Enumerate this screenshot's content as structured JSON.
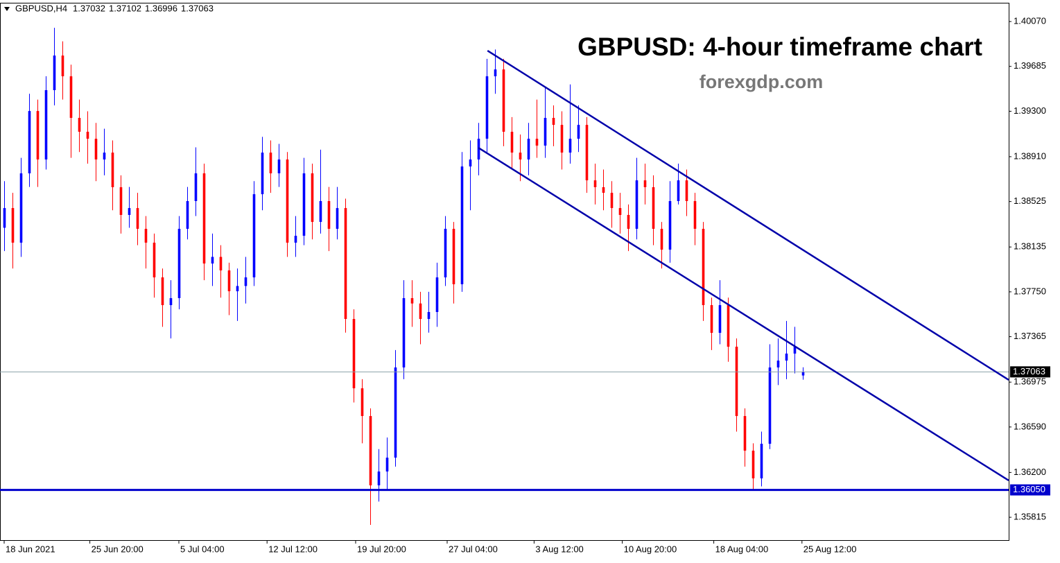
{
  "chart_data": {
    "type": "candlestick",
    "symbol": "GBPUSD,H4",
    "title": "GBPUSD: 4-hour timeframe chart",
    "subtitle": "forexgdp.com",
    "up_color": "#0000ff",
    "down_color": "#ff0000",
    "open": [
      1.383,
      1.38469,
      1.38172,
      1.38767,
      1.39302,
      1.38886,
      1.39481,
      1.39778,
      1.396,
      1.39243,
      1.39124,
      1.39064,
      1.38886,
      1.38945,
      1.38648,
      1.3841,
      1.38469,
      1.38291,
      1.38172,
      1.37874,
      1.37636,
      1.37696,
      1.38291,
      1.38529,
      1.38767,
      1.37993,
      1.3805,
      1.37934,
      1.37755,
      1.378,
      1.37874,
      1.38588,
      1.38945,
      1.38767,
      1.38886,
      1.38172,
      1.38231,
      1.38767,
      1.3835,
      1.38529,
      1.38291,
      1.38469,
      1.37517,
      1.36922,
      1.36684,
      1.36089,
      1.36208,
      1.36327,
      1.37101,
      1.37696,
      1.3765,
      1.37517,
      1.37577,
      1.37874,
      1.38291,
      1.37815,
      1.38826,
      1.38886,
      1.39064,
      1.396,
      1.39659,
      1.39124,
      1.38945,
      1.38886,
      1.39064,
      1.39005,
      1.39243,
      1.39183,
      1.38945,
      1.39064,
      1.39183,
      1.38707,
      1.38648,
      1.386,
      1.38469,
      1.3841,
      1.38291,
      1.38707,
      1.38648,
      1.38291,
      1.38112,
      1.38529,
      1.38707,
      1.38529,
      1.38291,
      1.37636,
      1.37398,
      1.37636,
      1.37279,
      1.36684,
      1.36387,
      1.36149,
      1.36446,
      1.37101,
      1.3716,
      1.3722,
      1.37032
    ],
    "high": [
      1.387,
      1.386,
      1.389,
      1.3945,
      1.394,
      1.396,
      1.40016,
      1.399,
      1.397,
      1.394,
      1.393,
      1.392,
      1.3915,
      1.3905,
      1.3875,
      1.3865,
      1.386,
      1.384,
      1.3825,
      1.3795,
      1.3785,
      1.384,
      1.3865,
      1.3899,
      1.3885,
      1.3825,
      1.3815,
      1.38,
      1.3795,
      1.3805,
      1.387,
      1.3908,
      1.3905,
      1.3902,
      1.3895,
      1.384,
      1.389,
      1.3885,
      1.3897,
      1.3865,
      1.3865,
      1.3855,
      1.376,
      1.37,
      1.3675,
      1.364,
      1.365,
      1.3725,
      1.3785,
      1.3785,
      1.3775,
      1.3775,
      1.38,
      1.384,
      1.3835,
      1.3895,
      1.3905,
      1.392,
      1.3975,
      1.3983,
      1.3975,
      1.3925,
      1.391,
      1.392,
      1.394,
      1.395,
      1.3935,
      1.393,
      1.3953,
      1.3935,
      1.3925,
      1.3885,
      1.388,
      1.387,
      1.386,
      1.385,
      1.389,
      1.3885,
      1.3875,
      1.3835,
      1.387,
      1.3885,
      1.388,
      1.386,
      1.3835,
      1.377,
      1.3785,
      1.377,
      1.3735,
      1.3675,
      1.3645,
      1.3655,
      1.373,
      1.3735,
      1.375,
      1.3745,
      1.37102
    ],
    "low": [
      1.381,
      1.3795,
      1.3805,
      1.3865,
      1.3865,
      1.388,
      1.3935,
      1.394,
      1.389,
      1.3895,
      1.3885,
      1.387,
      1.3875,
      1.3845,
      1.3825,
      1.383,
      1.3815,
      1.3795,
      1.377,
      1.3745,
      1.3735,
      1.376,
      1.382,
      1.384,
      1.3785,
      1.378,
      1.377,
      1.3755,
      1.375,
      1.3765,
      1.378,
      1.3845,
      1.386,
      1.3865,
      1.3805,
      1.3805,
      1.3815,
      1.382,
      1.3825,
      1.381,
      1.382,
      1.374,
      1.368,
      1.3645,
      1.3575,
      1.3595,
      1.3605,
      1.3625,
      1.37,
      1.3745,
      1.373,
      1.374,
      1.3745,
      1.378,
      1.3765,
      1.3775,
      1.3845,
      1.3875,
      1.3895,
      1.3945,
      1.39,
      1.388,
      1.387,
      1.3875,
      1.389,
      1.389,
      1.39,
      1.388,
      1.3885,
      1.3895,
      1.386,
      1.385,
      1.3845,
      1.383,
      1.3825,
      1.381,
      1.382,
      1.385,
      1.3815,
      1.3795,
      1.38,
      1.385,
      1.384,
      1.3815,
      1.375,
      1.3725,
      1.373,
      1.3715,
      1.3655,
      1.3625,
      1.3605,
      1.3608,
      1.364,
      1.3695,
      1.37,
      1.3705,
      1.36996
    ],
    "close": [
      1.38469,
      1.38172,
      1.38767,
      1.39302,
      1.38886,
      1.39481,
      1.39778,
      1.396,
      1.39243,
      1.39124,
      1.39064,
      1.38886,
      1.38945,
      1.38648,
      1.3841,
      1.38469,
      1.38291,
      1.38172,
      1.37874,
      1.37636,
      1.37696,
      1.38291,
      1.38529,
      1.38767,
      1.37993,
      1.3805,
      1.37934,
      1.37755,
      1.378,
      1.37874,
      1.38588,
      1.38945,
      1.38767,
      1.38886,
      1.38172,
      1.38231,
      1.38767,
      1.3835,
      1.38529,
      1.38291,
      1.38469,
      1.37517,
      1.36922,
      1.36684,
      1.36089,
      1.36208,
      1.36327,
      1.37101,
      1.37696,
      1.3765,
      1.37517,
      1.37577,
      1.37874,
      1.38291,
      1.37815,
      1.38826,
      1.38886,
      1.39064,
      1.396,
      1.39659,
      1.39124,
      1.38945,
      1.38886,
      1.39064,
      1.39005,
      1.39243,
      1.39183,
      1.38945,
      1.39064,
      1.39183,
      1.38707,
      1.38648,
      1.386,
      1.38469,
      1.3841,
      1.38291,
      1.38707,
      1.38648,
      1.38291,
      1.38112,
      1.38529,
      1.38707,
      1.38529,
      1.38291,
      1.37636,
      1.37398,
      1.37636,
      1.37279,
      1.36684,
      1.36387,
      1.36149,
      1.36446,
      1.37101,
      1.3716,
      1.3722,
      1.37279,
      1.37063
    ],
    "xlim": [
      0,
      121.25
    ],
    "xticks": [
      {
        "value": 0.5,
        "label": "18 Jun 2021"
      },
      {
        "value": 10.8,
        "label": "25 Jun 20:00"
      },
      {
        "value": 21.5,
        "label": "5 Jul 04:00"
      },
      {
        "value": 32.1,
        "label": "12 Jul 12:00"
      },
      {
        "value": 42.75,
        "label": "19 Jul 20:00"
      },
      {
        "value": 53.75,
        "label": "27 Jul 04:00"
      },
      {
        "value": 64.2,
        "label": "3 Aug 12:00"
      },
      {
        "value": 74.8,
        "label": "10 Aug 20:00"
      },
      {
        "value": 85.8,
        "label": "18 Aug 04:00"
      },
      {
        "value": 96.4,
        "label": "25 Aug 12:00"
      }
    ],
    "ylim": [
      1.35619,
      1.40225
    ],
    "yticks": [
      {
        "value": 1.4007,
        "label": "1.40070"
      },
      1.39685,
      {
        "value": 1.393,
        "label": "1.39300"
      },
      {
        "value": 1.3891,
        "label": "1.38910"
      },
      1.38525,
      1.38135,
      {
        "value": 1.3775,
        "label": "1.37750"
      },
      1.37365,
      1.36975,
      {
        "value": 1.3659,
        "label": "1.36590"
      },
      {
        "value": 1.362,
        "label": "1.36200"
      },
      1.35815
    ],
    "levels": [
      {
        "value": 1.3605,
        "label": "1.36050",
        "color": "#0000cc"
      }
    ],
    "trend_lines": [
      {
        "x": [
          58.6,
          121.25
        ],
        "y": [
          1.3982,
          1.36994
        ],
        "color": "#0000aa"
      },
      {
        "x": [
          57.5,
          121.25
        ],
        "y": [
          1.38987,
          1.36131
        ],
        "color": "#0000aa"
      }
    ]
  }
}
